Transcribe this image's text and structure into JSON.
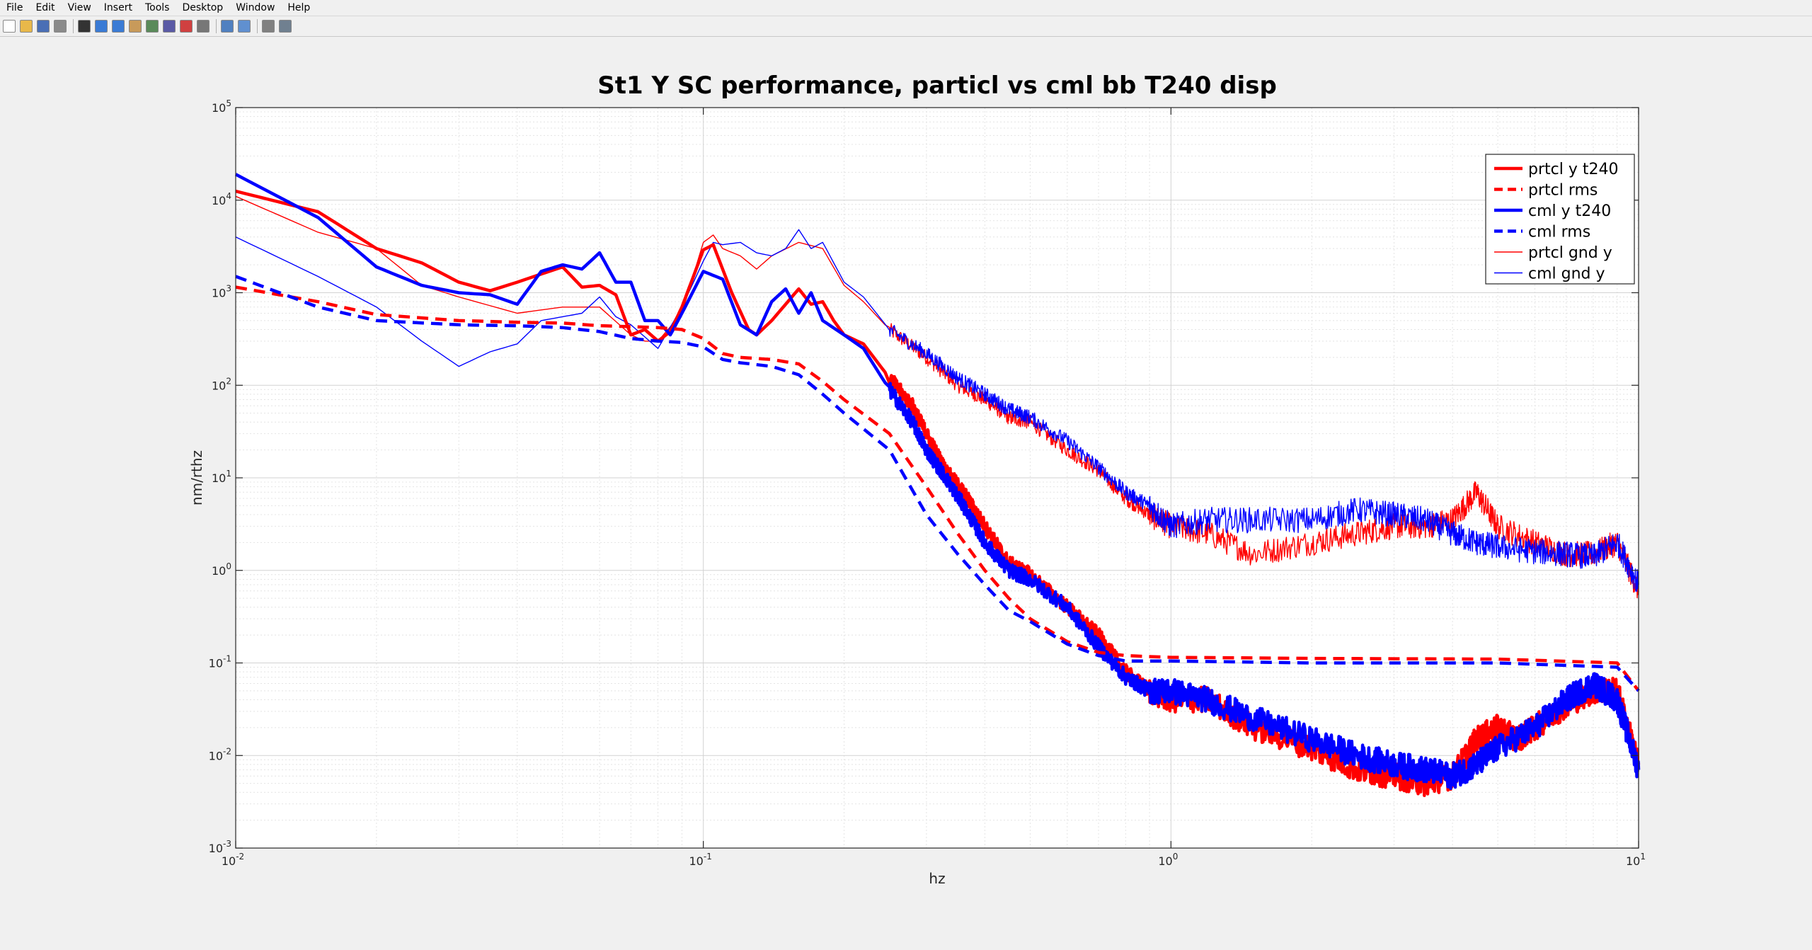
{
  "menu": [
    "File",
    "Edit",
    "View",
    "Insert",
    "Tools",
    "Desktop",
    "Window",
    "Help"
  ],
  "toolbar_icons": [
    "new-figure-icon",
    "open-file-icon",
    "save-icon",
    "print-icon",
    "pointer-icon",
    "zoom-in-icon",
    "zoom-out-icon",
    "pan-icon",
    "rotate-icon",
    "data-cursor-icon",
    "brush-icon",
    "link-plot-icon",
    "colorbar-icon",
    "legend-icon",
    "hide-plot-tools-icon",
    "show-plot-tools-icon"
  ],
  "colors": {
    "red": "#ff0000",
    "blue": "#0000ff",
    "figure_bg": "#f0f0f0",
    "axes_bg": "#ffffff"
  },
  "chart_data": {
    "type": "line",
    "title": "St1 Y SC performance, particl vs cml bb T240 disp",
    "xlabel": "hz",
    "ylabel": "nm/rthz",
    "xscale": "log",
    "yscale": "log",
    "xlim": [
      0.01,
      10
    ],
    "ylim": [
      0.001,
      100000
    ],
    "x_ticks": [
      {
        "base": "10",
        "exp": "-2"
      },
      {
        "base": "10",
        "exp": "-1"
      },
      {
        "base": "10",
        "exp": "0"
      },
      {
        "base": "10",
        "exp": "1"
      }
    ],
    "y_ticks": [
      {
        "base": "10",
        "exp": "-3"
      },
      {
        "base": "10",
        "exp": "-2"
      },
      {
        "base": "10",
        "exp": "-1"
      },
      {
        "base": "10",
        "exp": "0"
      },
      {
        "base": "10",
        "exp": "1"
      },
      {
        "base": "10",
        "exp": "2"
      },
      {
        "base": "10",
        "exp": "3"
      },
      {
        "base": "10",
        "exp": "4"
      },
      {
        "base": "10",
        "exp": "5"
      }
    ],
    "grid": true,
    "legend_position": "top-right",
    "series": [
      {
        "name": "prtcl y t240",
        "color": "#ff0000",
        "style": "solid",
        "width": "thick",
        "points": [
          [
            0.01,
            12500
          ],
          [
            0.015,
            7500
          ],
          [
            0.02,
            3000
          ],
          [
            0.025,
            2100
          ],
          [
            0.03,
            1300
          ],
          [
            0.035,
            1050
          ],
          [
            0.04,
            1300
          ],
          [
            0.05,
            1900
          ],
          [
            0.055,
            1150
          ],
          [
            0.06,
            1200
          ],
          [
            0.065,
            950
          ],
          [
            0.07,
            350
          ],
          [
            0.075,
            400
          ],
          [
            0.08,
            300
          ],
          [
            0.085,
            380
          ],
          [
            0.09,
            700
          ],
          [
            0.1,
            2900
          ],
          [
            0.105,
            3300
          ],
          [
            0.115,
            1000
          ],
          [
            0.125,
            400
          ],
          [
            0.13,
            350
          ],
          [
            0.14,
            500
          ],
          [
            0.16,
            1100
          ],
          [
            0.17,
            750
          ],
          [
            0.18,
            800
          ],
          [
            0.19,
            500
          ],
          [
            0.2,
            350
          ],
          [
            0.22,
            280
          ],
          [
            0.25,
            120
          ],
          [
            0.28,
            60
          ],
          [
            0.3,
            30
          ],
          [
            0.33,
            12
          ],
          [
            0.36,
            7
          ],
          [
            0.4,
            3
          ],
          [
            0.45,
            1.2
          ],
          [
            0.5,
            0.9
          ],
          [
            0.6,
            0.4
          ],
          [
            0.7,
            0.2
          ],
          [
            0.8,
            0.08
          ],
          [
            0.9,
            0.05
          ],
          [
            1.0,
            0.04
          ],
          [
            1.2,
            0.04
          ],
          [
            1.5,
            0.02
          ],
          [
            2.0,
            0.012
          ],
          [
            2.5,
            0.007
          ],
          [
            3.0,
            0.006
          ],
          [
            3.5,
            0.005
          ],
          [
            4.0,
            0.006
          ],
          [
            4.5,
            0.015
          ],
          [
            5.0,
            0.02
          ],
          [
            5.5,
            0.015
          ],
          [
            6.0,
            0.02
          ],
          [
            7.0,
            0.035
          ],
          [
            8.0,
            0.05
          ],
          [
            9.0,
            0.05
          ],
          [
            10.0,
            0.008
          ]
        ]
      },
      {
        "name": "prtcl rms",
        "color": "#ff0000",
        "style": "dashed",
        "width": "thick",
        "points": [
          [
            0.01,
            1150
          ],
          [
            0.015,
            800
          ],
          [
            0.02,
            580
          ],
          [
            0.03,
            500
          ],
          [
            0.04,
            480
          ],
          [
            0.05,
            470
          ],
          [
            0.06,
            440
          ],
          [
            0.07,
            430
          ],
          [
            0.08,
            420
          ],
          [
            0.09,
            400
          ],
          [
            0.1,
            320
          ],
          [
            0.11,
            220
          ],
          [
            0.12,
            200
          ],
          [
            0.14,
            190
          ],
          [
            0.16,
            170
          ],
          [
            0.18,
            110
          ],
          [
            0.2,
            70
          ],
          [
            0.25,
            30
          ],
          [
            0.3,
            8
          ],
          [
            0.35,
            2.5
          ],
          [
            0.4,
            1.0
          ],
          [
            0.45,
            0.5
          ],
          [
            0.5,
            0.3
          ],
          [
            0.6,
            0.17
          ],
          [
            0.7,
            0.13
          ],
          [
            0.8,
            0.12
          ],
          [
            1.0,
            0.115
          ],
          [
            2.0,
            0.112
          ],
          [
            5.0,
            0.11
          ],
          [
            9.0,
            0.1
          ],
          [
            10.0,
            0.05
          ]
        ]
      },
      {
        "name": "cml y t240",
        "color": "#0000ff",
        "style": "solid",
        "width": "thick",
        "points": [
          [
            0.01,
            19000
          ],
          [
            0.015,
            6500
          ],
          [
            0.02,
            1900
          ],
          [
            0.025,
            1200
          ],
          [
            0.03,
            1000
          ],
          [
            0.035,
            950
          ],
          [
            0.04,
            750
          ],
          [
            0.045,
            1700
          ],
          [
            0.05,
            2000
          ],
          [
            0.055,
            1800
          ],
          [
            0.06,
            2700
          ],
          [
            0.065,
            1300
          ],
          [
            0.07,
            1300
          ],
          [
            0.075,
            500
          ],
          [
            0.08,
            500
          ],
          [
            0.085,
            350
          ],
          [
            0.09,
            600
          ],
          [
            0.1,
            1700
          ],
          [
            0.11,
            1400
          ],
          [
            0.12,
            450
          ],
          [
            0.13,
            350
          ],
          [
            0.14,
            800
          ],
          [
            0.15,
            1100
          ],
          [
            0.16,
            600
          ],
          [
            0.17,
            1000
          ],
          [
            0.18,
            500
          ],
          [
            0.2,
            350
          ],
          [
            0.22,
            250
          ],
          [
            0.25,
            90
          ],
          [
            0.28,
            40
          ],
          [
            0.3,
            20
          ],
          [
            0.33,
            10
          ],
          [
            0.36,
            5
          ],
          [
            0.4,
            2
          ],
          [
            0.45,
            1.0
          ],
          [
            0.5,
            0.8
          ],
          [
            0.6,
            0.4
          ],
          [
            0.7,
            0.15
          ],
          [
            0.8,
            0.07
          ],
          [
            0.9,
            0.05
          ],
          [
            1.0,
            0.05
          ],
          [
            1.2,
            0.04
          ],
          [
            1.5,
            0.025
          ],
          [
            2.0,
            0.015
          ],
          [
            2.5,
            0.01
          ],
          [
            3.0,
            0.008
          ],
          [
            3.5,
            0.007
          ],
          [
            4.0,
            0.006
          ],
          [
            4.5,
            0.008
          ],
          [
            5.0,
            0.012
          ],
          [
            6.0,
            0.02
          ],
          [
            7.0,
            0.04
          ],
          [
            8.0,
            0.06
          ],
          [
            9.0,
            0.04
          ],
          [
            10.0,
            0.007
          ]
        ]
      },
      {
        "name": "cml rms",
        "color": "#0000ff",
        "style": "dashed",
        "width": "thick",
        "points": [
          [
            0.01,
            1500
          ],
          [
            0.015,
            700
          ],
          [
            0.02,
            500
          ],
          [
            0.03,
            450
          ],
          [
            0.04,
            440
          ],
          [
            0.05,
            420
          ],
          [
            0.06,
            380
          ],
          [
            0.07,
            320
          ],
          [
            0.08,
            300
          ],
          [
            0.09,
            290
          ],
          [
            0.1,
            260
          ],
          [
            0.11,
            190
          ],
          [
            0.12,
            175
          ],
          [
            0.14,
            160
          ],
          [
            0.16,
            130
          ],
          [
            0.18,
            80
          ],
          [
            0.2,
            50
          ],
          [
            0.25,
            20
          ],
          [
            0.3,
            4
          ],
          [
            0.35,
            1.5
          ],
          [
            0.4,
            0.7
          ],
          [
            0.45,
            0.37
          ],
          [
            0.5,
            0.28
          ],
          [
            0.6,
            0.16
          ],
          [
            0.7,
            0.12
          ],
          [
            0.8,
            0.105
          ],
          [
            1.0,
            0.105
          ],
          [
            2.0,
            0.1
          ],
          [
            5.0,
            0.1
          ],
          [
            9.0,
            0.09
          ],
          [
            10.0,
            0.05
          ]
        ]
      },
      {
        "name": "prtcl gnd y",
        "color": "#ff0000",
        "style": "solid",
        "width": "thin",
        "points": [
          [
            0.01,
            11000
          ],
          [
            0.015,
            4500
          ],
          [
            0.02,
            3000
          ],
          [
            0.025,
            1200
          ],
          [
            0.03,
            900
          ],
          [
            0.04,
            600
          ],
          [
            0.05,
            700
          ],
          [
            0.06,
            700
          ],
          [
            0.07,
            350
          ],
          [
            0.075,
            300
          ],
          [
            0.08,
            300
          ],
          [
            0.09,
            600
          ],
          [
            0.1,
            3500
          ],
          [
            0.105,
            4200
          ],
          [
            0.11,
            3000
          ],
          [
            0.12,
            2500
          ],
          [
            0.13,
            1800
          ],
          [
            0.14,
            2500
          ],
          [
            0.16,
            3500
          ],
          [
            0.18,
            3000
          ],
          [
            0.2,
            1200
          ],
          [
            0.22,
            800
          ],
          [
            0.25,
            400
          ],
          [
            0.3,
            200
          ],
          [
            0.35,
            100
          ],
          [
            0.4,
            70
          ],
          [
            0.45,
            45
          ],
          [
            0.5,
            40
          ],
          [
            0.6,
            20
          ],
          [
            0.7,
            12
          ],
          [
            0.8,
            6
          ],
          [
            0.9,
            4
          ],
          [
            1.0,
            3
          ],
          [
            1.2,
            2.5
          ],
          [
            1.5,
            1.5
          ],
          [
            2.0,
            2.0
          ],
          [
            2.5,
            2.5
          ],
          [
            3.0,
            3.0
          ],
          [
            3.5,
            3.0
          ],
          [
            4.0,
            3.5
          ],
          [
            4.5,
            7.0
          ],
          [
            5.0,
            3.0
          ],
          [
            6.0,
            2.0
          ],
          [
            7.0,
            1.5
          ],
          [
            8.0,
            1.5
          ],
          [
            9.0,
            2.0
          ],
          [
            10.0,
            0.6
          ]
        ]
      },
      {
        "name": "cml gnd y",
        "color": "#0000ff",
        "style": "solid",
        "width": "thin",
        "points": [
          [
            0.01,
            4000
          ],
          [
            0.015,
            1500
          ],
          [
            0.02,
            700
          ],
          [
            0.025,
            300
          ],
          [
            0.03,
            160
          ],
          [
            0.035,
            230
          ],
          [
            0.04,
            280
          ],
          [
            0.045,
            500
          ],
          [
            0.05,
            550
          ],
          [
            0.055,
            600
          ],
          [
            0.06,
            900
          ],
          [
            0.065,
            550
          ],
          [
            0.07,
            450
          ],
          [
            0.08,
            250
          ],
          [
            0.09,
            700
          ],
          [
            0.1,
            2200
          ],
          [
            0.105,
            3500
          ],
          [
            0.11,
            3300
          ],
          [
            0.12,
            3500
          ],
          [
            0.13,
            2700
          ],
          [
            0.14,
            2500
          ],
          [
            0.15,
            3000
          ],
          [
            0.16,
            4800
          ],
          [
            0.17,
            3000
          ],
          [
            0.18,
            3500
          ],
          [
            0.2,
            1300
          ],
          [
            0.22,
            900
          ],
          [
            0.25,
            400
          ],
          [
            0.3,
            220
          ],
          [
            0.35,
            120
          ],
          [
            0.4,
            80
          ],
          [
            0.45,
            55
          ],
          [
            0.5,
            45
          ],
          [
            0.6,
            25
          ],
          [
            0.7,
            13
          ],
          [
            0.8,
            7
          ],
          [
            0.9,
            5
          ],
          [
            1.0,
            3
          ],
          [
            1.2,
            3.5
          ],
          [
            1.5,
            3.5
          ],
          [
            2.0,
            3.5
          ],
          [
            2.5,
            4.5
          ],
          [
            3.0,
            4.0
          ],
          [
            3.5,
            3.5
          ],
          [
            4.0,
            2.5
          ],
          [
            4.5,
            2.0
          ],
          [
            5.0,
            1.8
          ],
          [
            6.0,
            1.6
          ],
          [
            7.0,
            1.5
          ],
          [
            8.0,
            1.4
          ],
          [
            9.0,
            2.0
          ],
          [
            10.0,
            0.7
          ]
        ]
      }
    ]
  }
}
